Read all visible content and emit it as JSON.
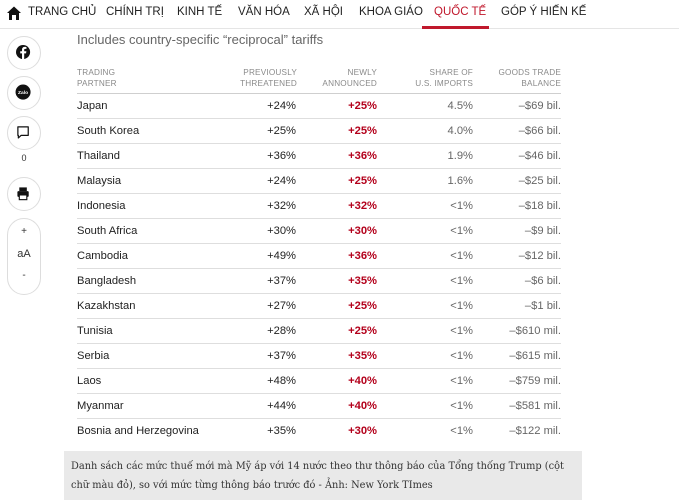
{
  "nav": {
    "home_icon": "home-icon",
    "items": [
      "TRANG CHỦ",
      "CHÍNH TRỊ",
      "KINH TẾ",
      "VĂN HÓA",
      "XÃ HỘI",
      "KHOA GIÁO",
      "QUỐC TẾ",
      "GÓP Ý HIẾN KẾ"
    ],
    "active": "QUỐC TẾ",
    "accent_color": "#c0182c"
  },
  "sidebar": {
    "facebook_icon": "facebook-icon",
    "zalo_label": "Zalo",
    "comment_icon": "comment-icon",
    "comment_count": "0",
    "print_icon": "print-icon",
    "font_increase": "+",
    "font_label": "aA",
    "font_decrease": "-"
  },
  "graphic": {
    "subtitle": "Includes country-specific “reciprocal” tariffs",
    "columns": {
      "partner": [
        "TRADING",
        "PARTNER"
      ],
      "previous": [
        "PREVIOUSLY",
        "THREATENED"
      ],
      "newly": [
        "NEWLY",
        "ANNOUNCED"
      ],
      "share": [
        "SHARE OF",
        "U.S. IMPORTS"
      ],
      "balance": [
        "GOODS TRADE",
        "BALANCE"
      ]
    },
    "rows": [
      {
        "country": "Japan",
        "previous": "+24%",
        "newly": "+25%",
        "share": "4.5%",
        "balance": "–$69 bil."
      },
      {
        "country": "South Korea",
        "previous": "+25%",
        "newly": "+25%",
        "share": "4.0%",
        "balance": "–$66 bil."
      },
      {
        "country": "Thailand",
        "previous": "+36%",
        "newly": "+36%",
        "share": "1.9%",
        "balance": "–$46 bil."
      },
      {
        "country": "Malaysia",
        "previous": "+24%",
        "newly": "+25%",
        "share": "1.6%",
        "balance": "–$25 bil."
      },
      {
        "country": "Indonesia",
        "previous": "+32%",
        "newly": "+32%",
        "share": "<1%",
        "balance": "–$18 bil."
      },
      {
        "country": "South Africa",
        "previous": "+30%",
        "newly": "+30%",
        "share": "<1%",
        "balance": "–$9 bil."
      },
      {
        "country": "Cambodia",
        "previous": "+49%",
        "newly": "+36%",
        "share": "<1%",
        "balance": "–$12 bil."
      },
      {
        "country": "Bangladesh",
        "previous": "+37%",
        "newly": "+35%",
        "share": "<1%",
        "balance": "–$6 bil."
      },
      {
        "country": "Kazakhstan",
        "previous": "+27%",
        "newly": "+25%",
        "share": "<1%",
        "balance": "–$1 bil."
      },
      {
        "country": "Tunisia",
        "previous": "+28%",
        "newly": "+25%",
        "share": "<1%",
        "balance": "–$610 mil."
      },
      {
        "country": "Serbia",
        "previous": "+37%",
        "newly": "+35%",
        "share": "<1%",
        "balance": "–$615 mil."
      },
      {
        "country": "Laos",
        "previous": "+48%",
        "newly": "+40%",
        "share": "<1%",
        "balance": "–$759 mil."
      },
      {
        "country": "Myanmar",
        "previous": "+44%",
        "newly": "+40%",
        "share": "<1%",
        "balance": "–$581 mil."
      },
      {
        "country": "Bosnia and Herzegovina",
        "previous": "+35%",
        "newly": "+30%",
        "share": "<1%",
        "balance": "–$122 mil."
      }
    ],
    "highlight_color": "#b3001b"
  },
  "caption": {
    "text": "Danh sách các mức thuế mới mà Mỹ áp với 14 nước theo thư thông báo của Tổng thống Trump (cột chữ màu đỏ), so với mức từng thông báo trước đó - Ảnh: New York TImes"
  }
}
